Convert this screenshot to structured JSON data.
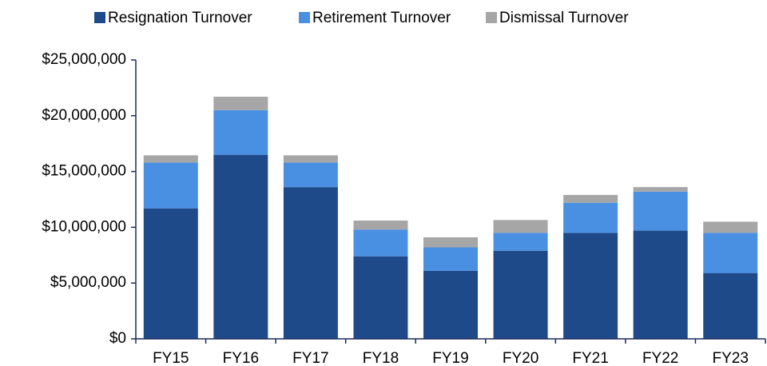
{
  "chart_data": {
    "type": "bar",
    "stacked": true,
    "categories": [
      "FY15",
      "FY16",
      "FY17",
      "FY18",
      "FY19",
      "FY20",
      "FY21",
      "FY22",
      "FY23"
    ],
    "series": [
      {
        "name": "Resignation Turnover",
        "color": "#1f4a8a",
        "values": [
          11700000,
          16500000,
          13600000,
          7400000,
          6100000,
          7900000,
          9500000,
          9700000,
          5900000
        ]
      },
      {
        "name": "Retirement Turnover",
        "color": "#4a90e2",
        "values": [
          4100000,
          4000000,
          2200000,
          2400000,
          2100000,
          1600000,
          2700000,
          3500000,
          3600000
        ]
      },
      {
        "name": "Dismissal Turnover",
        "color": "#a6a6a6",
        "values": [
          650000,
          1200000,
          650000,
          800000,
          900000,
          1150000,
          700000,
          400000,
          1000000
        ]
      }
    ],
    "ylim": [
      0,
      25000000
    ],
    "yticks": [
      {
        "value": 0,
        "label": "$0"
      },
      {
        "value": 5000000,
        "label": "$5,000,000"
      },
      {
        "value": 10000000,
        "label": "$10,000,000"
      },
      {
        "value": 15000000,
        "label": "$15,000,000"
      },
      {
        "value": 20000000,
        "label": "$20,000,000"
      },
      {
        "value": 25000000,
        "label": "$25,000,000"
      }
    ],
    "grid": false,
    "legend": "top"
  }
}
